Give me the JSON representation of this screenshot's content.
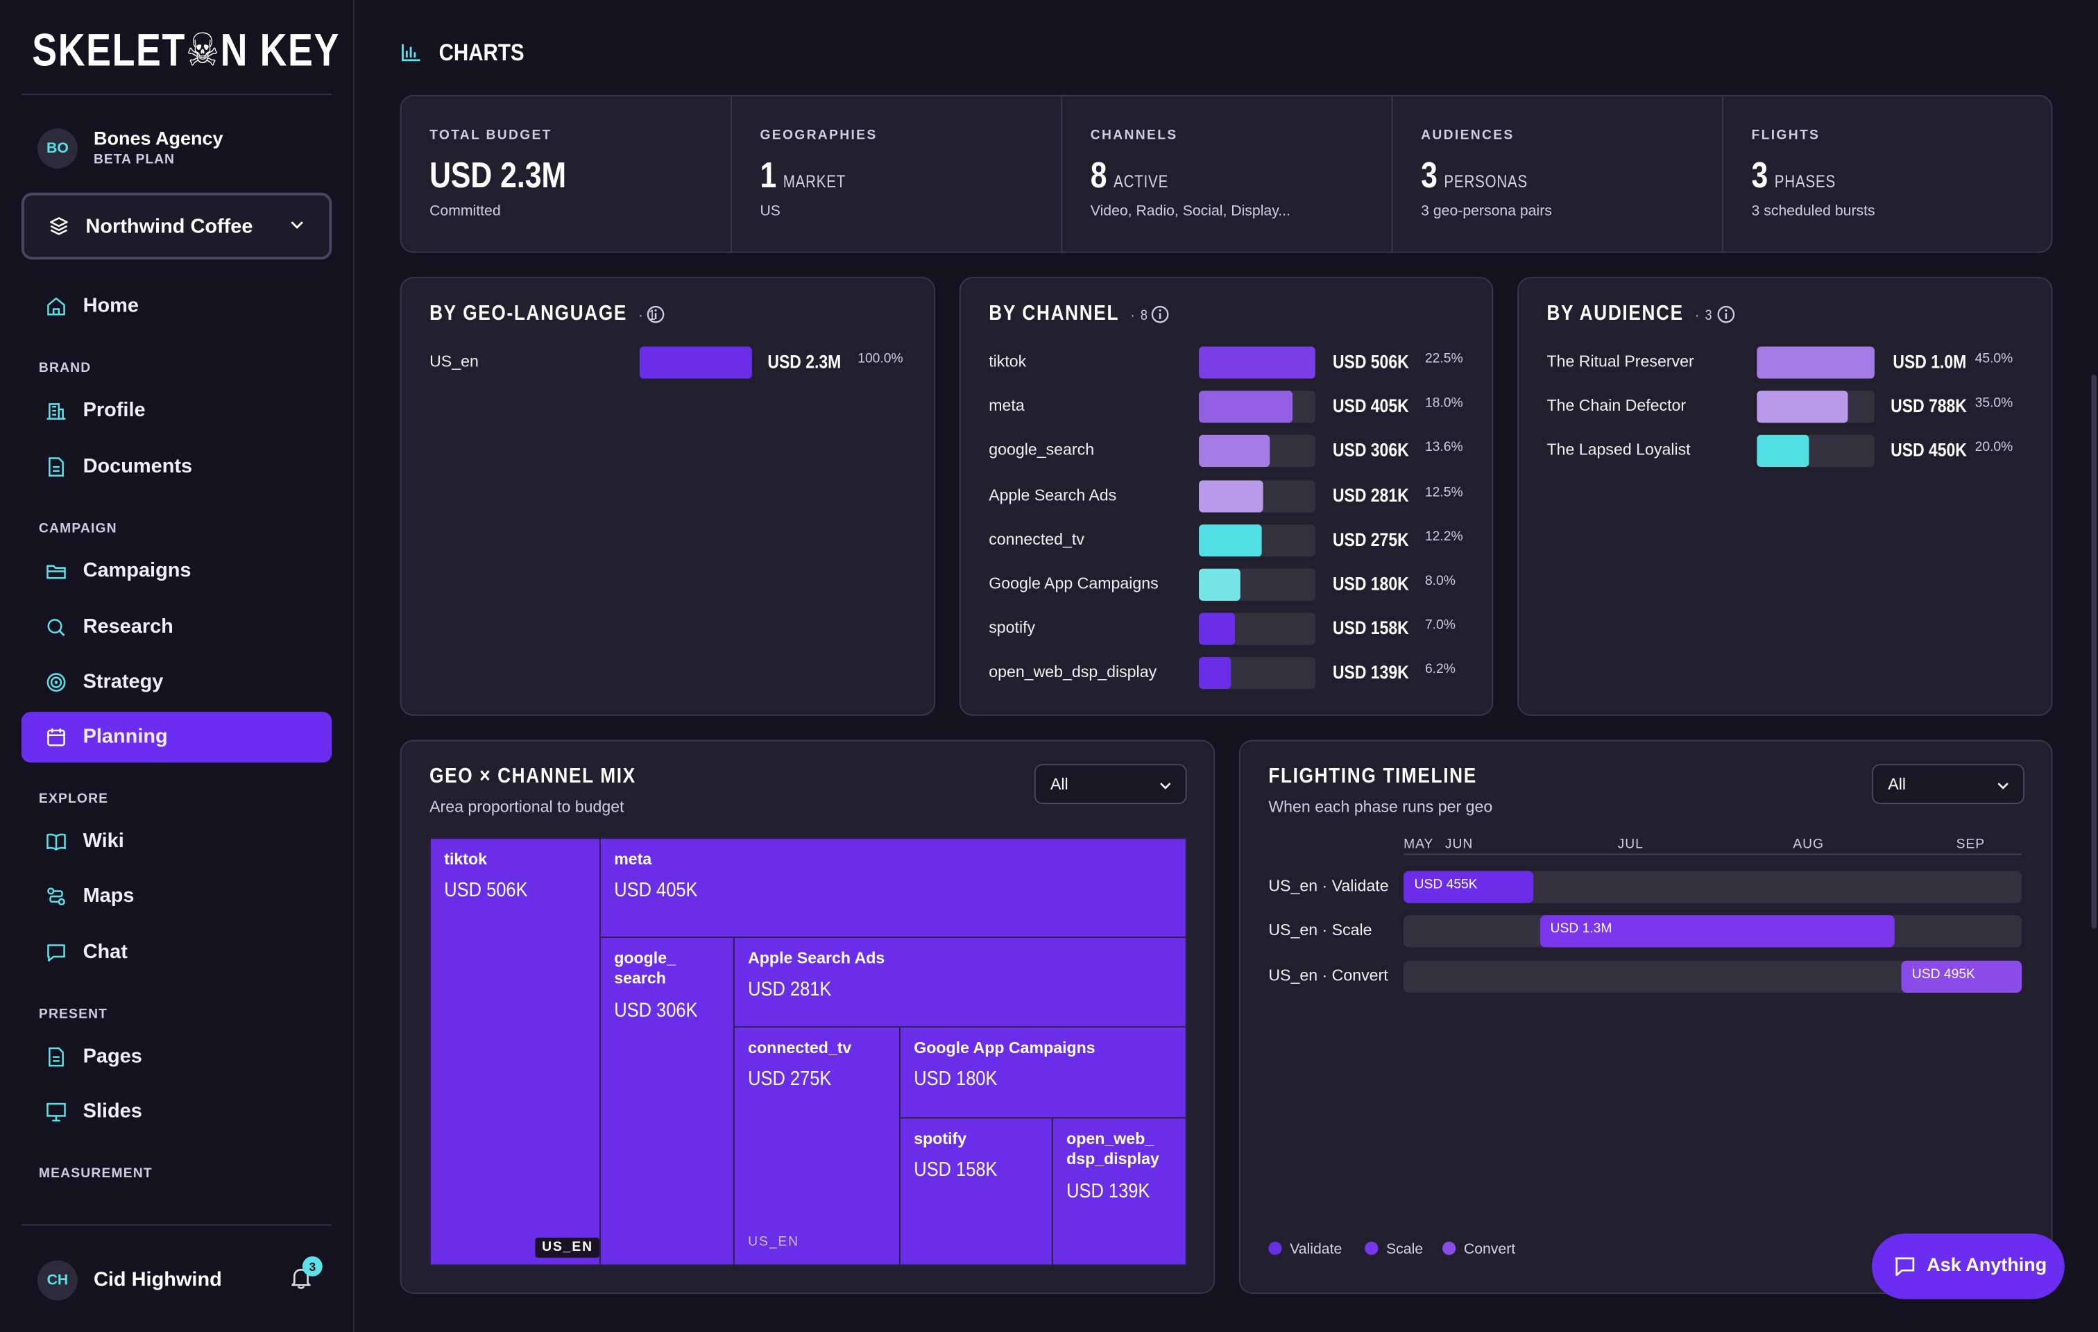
{
  "brand": {
    "logo": "SKELET☠N KEY"
  },
  "org": {
    "initials": "BO",
    "name": "Bones Agency",
    "plan": "BETA PLAN"
  },
  "client_select": {
    "value": "Northwind Coffee"
  },
  "nav": {
    "home": "Home",
    "sections": {
      "brand": "BRAND",
      "campaign": "CAMPAIGN",
      "explore": "EXPLORE",
      "present": "PRESENT",
      "measurement": "MEASUREMENT"
    },
    "profile": "Profile",
    "documents": "Documents",
    "campaigns": "Campaigns",
    "research": "Research",
    "strategy": "Strategy",
    "planning": "Planning",
    "wiki": "Wiki",
    "maps": "Maps",
    "chat": "Chat",
    "pages": "Pages",
    "slides": "Slides"
  },
  "user": {
    "initials": "CH",
    "name": "Cid Highwind",
    "notifications": "3"
  },
  "page": {
    "title": "CHARTS"
  },
  "stats": [
    {
      "label": "TOTAL BUDGET",
      "value": "USD 2.3M",
      "unit": "",
      "sub": "Committed"
    },
    {
      "label": "GEOGRAPHIES",
      "value": "1",
      "unit": "MARKET",
      "sub": "US"
    },
    {
      "label": "CHANNELS",
      "value": "8",
      "unit": "ACTIVE",
      "sub": "Video, Radio, Social, Display..."
    },
    {
      "label": "AUDIENCES",
      "value": "3",
      "unit": "PERSONAS",
      "sub": "3 geo-persona pairs"
    },
    {
      "label": "FLIGHTS",
      "value": "3",
      "unit": "PHASES",
      "sub": "3 scheduled bursts"
    }
  ],
  "colors": {
    "accent": "#6b2df0",
    "cyan": "#5be1e8",
    "bg": "#15121f",
    "card": "#211e2d"
  },
  "chart_data": [
    {
      "type": "bar",
      "title": "BY GEO-LANGUAGE",
      "count": "1",
      "categories": [
        "US_en"
      ],
      "values": [
        2.3
      ],
      "value_labels": [
        "USD 2.3M"
      ],
      "percent_labels": [
        "100.0%"
      ],
      "colors": [
        "#6a2ee8"
      ]
    },
    {
      "type": "bar",
      "title": "BY CHANNEL",
      "count": "8",
      "categories": [
        "tiktok",
        "meta",
        "google_search",
        "Apple Search Ads",
        "connected_tv",
        "Google App Campaigns",
        "spotify",
        "open_web_dsp_display"
      ],
      "values": [
        22.5,
        18.0,
        13.6,
        12.5,
        12.2,
        8.0,
        7.0,
        6.2
      ],
      "value_labels": [
        "USD 506K",
        "USD 405K",
        "USD 306K",
        "USD 281K",
        "USD 275K",
        "USD 180K",
        "USD 158K",
        "USD 139K"
      ],
      "percent_labels": [
        "22.5%",
        "18.0%",
        "13.6%",
        "12.5%",
        "12.2%",
        "8.0%",
        "7.0%",
        "6.2%"
      ],
      "colors": [
        "#7b3ee6",
        "#9460e3",
        "#a57be6",
        "#b99aea",
        "#52dfe4",
        "#76e5e8",
        "#6a2ee8",
        "#6a2ee8"
      ]
    },
    {
      "type": "bar",
      "title": "BY AUDIENCE",
      "count": "3",
      "categories": [
        "The Ritual Preserver",
        "The Chain Defector",
        "The Lapsed Loyalist"
      ],
      "values": [
        45.0,
        35.0,
        20.0
      ],
      "value_labels": [
        "USD 1.0M",
        "USD 788K",
        "USD 450K"
      ],
      "percent_labels": [
        "45.0%",
        "35.0%",
        "20.0%"
      ],
      "colors": [
        "#a37ae6",
        "#b99aea",
        "#52dfe4"
      ]
    },
    {
      "type": "heatmap",
      "title": "GEO × CHANNEL MIX",
      "subtitle": "Area proportional to budget",
      "filter": "All",
      "geo_labels": [
        "US_EN",
        "US_EN"
      ],
      "tiles": [
        {
          "name": "tiktok",
          "value": "USD 506K"
        },
        {
          "name": "meta",
          "value": "USD 405K"
        },
        {
          "name": "google_ search",
          "value": "USD 306K"
        },
        {
          "name": "Apple Search Ads",
          "value": "USD 281K"
        },
        {
          "name": "connected_tv",
          "value": "USD 275K"
        },
        {
          "name": "Google App Campaigns",
          "value": "USD 180K"
        },
        {
          "name": "spotify",
          "value": "USD 158K"
        },
        {
          "name": "open_web_ dsp_display",
          "value": "USD 139K"
        }
      ]
    },
    {
      "type": "bar",
      "title": "FLIGHTING TIMELINE",
      "subtitle": "When each phase runs per geo",
      "filter": "All",
      "months": [
        "MAY",
        "JUN",
        "JUL",
        "AUG",
        "SEP"
      ],
      "rows": [
        {
          "label": "US_en · Validate",
          "phase": "Validate",
          "start": 0.0,
          "end": 0.21,
          "value": "USD 455K"
        },
        {
          "label": "US_en · Scale",
          "phase": "Scale",
          "start": 0.22,
          "end": 0.795,
          "value": "USD 1.3M"
        },
        {
          "label": "US_en · Convert",
          "phase": "Convert",
          "start": 0.805,
          "end": 1.0,
          "value": "USD 495K"
        }
      ],
      "legend": [
        "Validate",
        "Scale",
        "Convert"
      ],
      "legend_colors": [
        "#6a2ee8",
        "#7b35ea",
        "#8a4be8"
      ]
    }
  ],
  "assistant": {
    "label": "Ask Anything"
  }
}
